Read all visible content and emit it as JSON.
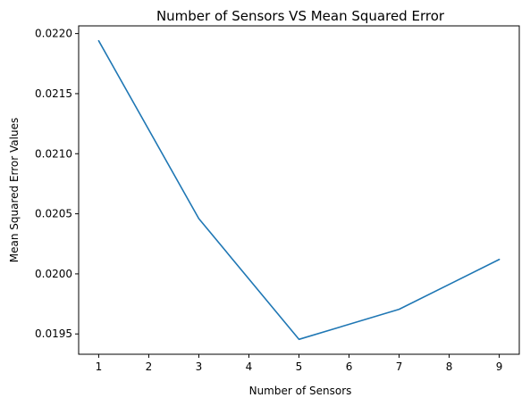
{
  "chart_data": {
    "type": "line",
    "title": "Number of Sensors VS Mean Squared Error",
    "xlabel": "Number of Sensors",
    "ylabel": "Mean Squared Error Values",
    "x": [
      1,
      3,
      5,
      7,
      9
    ],
    "series": [
      {
        "values": [
          0.02194,
          0.02046,
          0.019455,
          0.019705,
          0.02012
        ],
        "color": "#1f77b4"
      }
    ],
    "xticks": [
      1,
      2,
      3,
      4,
      5,
      6,
      7,
      8,
      9
    ],
    "xtick_labels": [
      "1",
      "2",
      "3",
      "4",
      "5",
      "6",
      "7",
      "8",
      "9"
    ],
    "yticks": [
      0.0195,
      0.02,
      0.0205,
      0.021,
      0.0215,
      0.022
    ],
    "ytick_labels": [
      "0.0195",
      "0.0200",
      "0.0205",
      "0.0210",
      "0.0215",
      "0.0220"
    ],
    "xlim": [
      0.6,
      9.4
    ],
    "ylim": [
      0.019331,
      0.022064
    ],
    "grid": false,
    "legend": "none"
  }
}
